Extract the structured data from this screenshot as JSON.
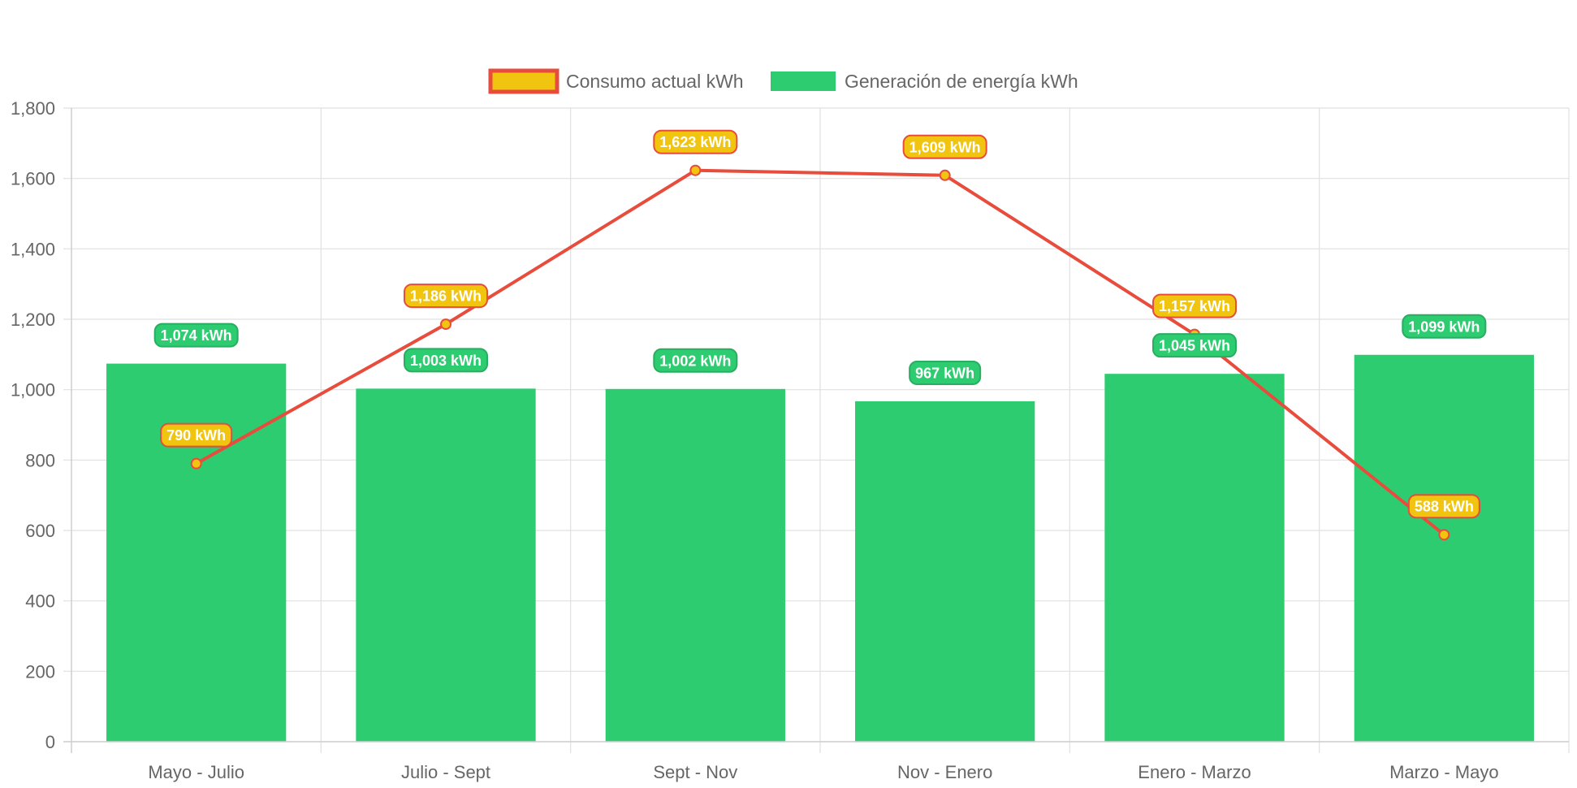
{
  "chart_data": {
    "type": "bar",
    "categories": [
      "Mayo - Julio",
      "Julio - Sept",
      "Sept - Nov",
      "Nov - Enero",
      "Enero - Marzo",
      "Marzo - Mayo"
    ],
    "series": [
      {
        "name": "Consumo actual kWh",
        "type": "line",
        "values": [
          790,
          1186,
          1623,
          1609,
          1157,
          588
        ],
        "labels": [
          "790 kWh",
          "1,186 kWh",
          "1,623 kWh",
          "1,609 kWh",
          "1,157 kWh",
          "588 kWh"
        ],
        "line_color": "#e74c3c",
        "fill_color": "#f1c40f"
      },
      {
        "name": "Generación de energía kWh",
        "type": "bar",
        "values": [
          1074,
          1003,
          1002,
          967,
          1045,
          1099
        ],
        "labels": [
          "1,074 kWh",
          "1,003 kWh",
          "1,002 kWh",
          "967 kWh",
          "1,045 kWh",
          "1,099 kWh"
        ],
        "color": "#2ecc71",
        "label_border": "#27ae60"
      }
    ],
    "y_ticks": [
      "0",
      "200",
      "400",
      "600",
      "800",
      "1,000",
      "1,200",
      "1,400",
      "1,600",
      "1,800"
    ],
    "ylim": [
      0,
      1800
    ],
    "grid": true,
    "legend_position": "top"
  }
}
